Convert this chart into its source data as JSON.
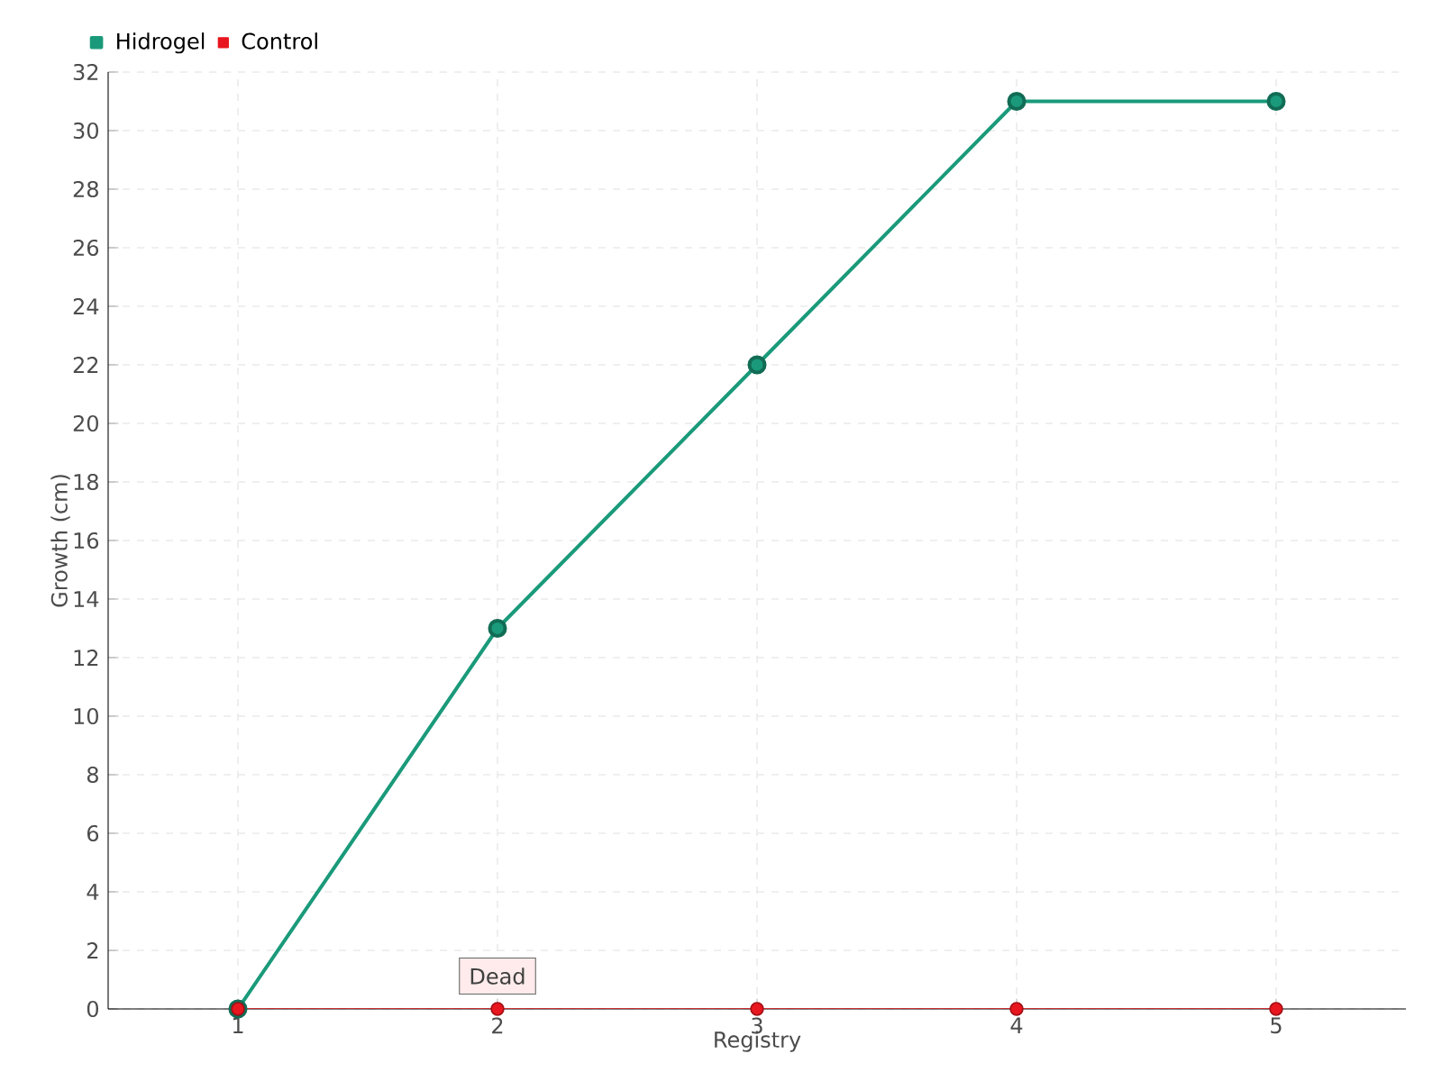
{
  "chart_data": {
    "type": "line",
    "xlabel": "Registry",
    "ylabel": "Growth (cm)",
    "x": [
      1,
      2,
      3,
      4,
      5
    ],
    "series": [
      {
        "name": "Hidrogel",
        "color": "#1a9a7a",
        "values": [
          0,
          13,
          22,
          31,
          31
        ]
      },
      {
        "name": "Control",
        "color": "#e8161e",
        "values": [
          0,
          0,
          0,
          0,
          0
        ]
      }
    ],
    "xlim": [
      0.5,
      5.5
    ],
    "xticks": [
      1,
      2,
      3,
      4,
      5
    ],
    "ylim": [
      0,
      32
    ],
    "yticks": [
      0,
      2,
      4,
      6,
      8,
      10,
      12,
      14,
      16,
      18,
      20,
      22,
      24,
      26,
      28,
      30,
      32
    ],
    "grid": true,
    "legend": "top left",
    "marker": "circle",
    "line_style": "solid",
    "annotations": [
      {
        "text": "Dead",
        "x": 2,
        "y": 0
      }
    ]
  }
}
